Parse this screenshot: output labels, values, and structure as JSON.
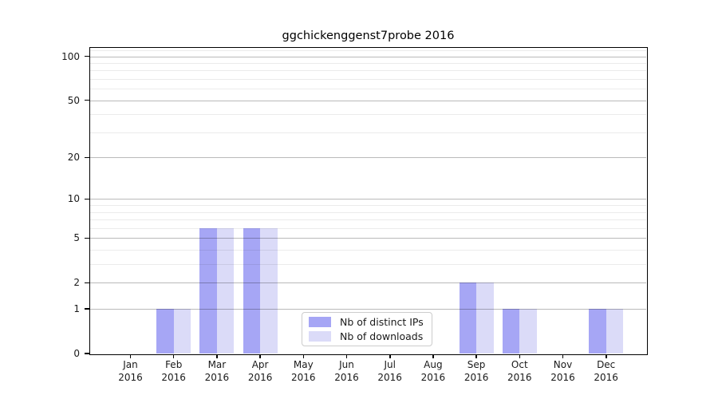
{
  "figure": {
    "title": "ggchickenggenst7probe 2016"
  },
  "chart_data": {
    "type": "bar",
    "title": "ggchickenggenst7probe 2016",
    "categories": [
      "Jan",
      "Feb",
      "Mar",
      "Apr",
      "May",
      "Jun",
      "Jul",
      "Aug",
      "Sep",
      "Oct",
      "Nov",
      "Dec"
    ],
    "year": "2016",
    "series": [
      {
        "name": "Nb of distinct IPs",
        "color": "#a6a6f5",
        "values": [
          0,
          1,
          6,
          6,
          0,
          0,
          0,
          0,
          2,
          1,
          0,
          1
        ]
      },
      {
        "name": "Nb of downloads",
        "color": "#dbdbf8",
        "values": [
          0,
          1,
          6,
          6,
          0,
          0,
          0,
          0,
          2,
          1,
          0,
          1
        ]
      }
    ],
    "yscale": "log10(1+y)",
    "ylim": [
      0,
      114
    ],
    "yticks": [
      0,
      1,
      2,
      5,
      10,
      20,
      50,
      100
    ],
    "minor_yticks": [
      3,
      4,
      6,
      7,
      8,
      9,
      30,
      40,
      60,
      70,
      80,
      90,
      110
    ],
    "grid": true,
    "legend_position": "bottom-center"
  },
  "colors": {
    "grid_major": "rgba(0,0,0,0.27)",
    "grid_minor": "rgba(0,0,0,0.08)",
    "frame": "#000000",
    "background": "#ffffff",
    "text": "#1a1a1a"
  }
}
